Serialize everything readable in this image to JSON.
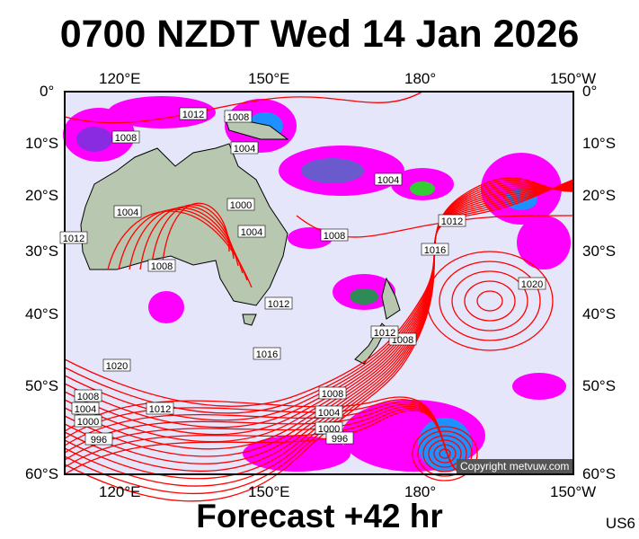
{
  "title": "0700 NZDT Wed 14 Jan 2026",
  "footer": "Forecast +42 hr",
  "model_code": "US6",
  "copyright": "Copyright metvuw.com",
  "axes": {
    "top_lon": [
      "120°E",
      "150°E",
      "180°",
      "150°W"
    ],
    "bottom_lon": [
      "120°E",
      "150°E",
      "180°",
      "150°W"
    ],
    "left_lat": [
      "0°",
      "10°S",
      "20°S",
      "30°S",
      "40°S",
      "50°S",
      "60°S"
    ],
    "right_lat": [
      "0°",
      "10°S",
      "20°S",
      "30°S",
      "40°S",
      "50°S",
      "60°S"
    ]
  },
  "isobar_labels": [
    "1012",
    "1008",
    "1008",
    "1004",
    "1004",
    "1000",
    "1004",
    "1012",
    "1008",
    "1004",
    "1008",
    "1012",
    "1016",
    "1020",
    "1012",
    "1016",
    "1008",
    "1012",
    "1020",
    "1008",
    "1004",
    "1000",
    "996",
    "1008",
    "1004",
    "1000",
    "996",
    "1012"
  ],
  "colors": {
    "ocean": "#e6e6fa",
    "land": "#b8c8b0",
    "isobar": "#ff0000",
    "precip_light": "#ff00ff",
    "precip_mid": "#8a2be2",
    "precip_heavy": "#1e90ff"
  }
}
